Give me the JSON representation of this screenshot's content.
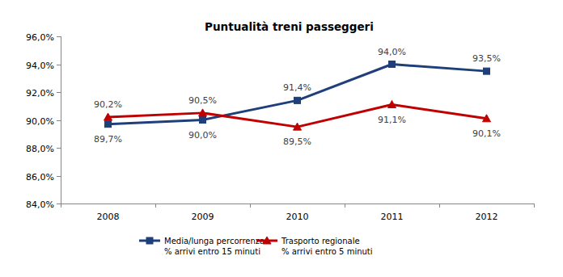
{
  "chart_data": {
    "type": "line",
    "title": "Puntualità treni passeggeri",
    "categories": [
      "2008",
      "2009",
      "2010",
      "2011",
      "2012"
    ],
    "series": [
      {
        "name": "Media/lunga percorrenza\n% arrivi entro 15 minuti",
        "color": "#1f3f7a",
        "marker": "square",
        "line_style": "solid",
        "values": [
          89.7,
          90.0,
          91.4,
          94.0,
          93.5
        ],
        "value_labels": [
          "89,7%",
          "90,0%",
          "91,4%",
          "94,0%",
          "93,5%"
        ]
      },
      {
        "name": "Trasporto regionale\n% arrivi entro 5 minuti",
        "color": "#c00000",
        "marker": "triangle",
        "line_style": "solid",
        "values": [
          90.2,
          90.5,
          89.5,
          91.1,
          90.1
        ],
        "value_labels": [
          "90,2%",
          "90,5%",
          "89,5%",
          "91,1%",
          "90,1%"
        ]
      }
    ],
    "ylim": [
      84,
      96
    ],
    "yticks": [
      {
        "value": 84,
        "label": "84,0%"
      },
      {
        "value": 86,
        "label": "86,0%"
      },
      {
        "value": 88,
        "label": "88,0%"
      },
      {
        "value": 90,
        "label": "90,0%"
      },
      {
        "value": 92,
        "label": "92,0%"
      },
      {
        "value": 94,
        "label": "94,0%"
      },
      {
        "value": 96,
        "label": "96,0%"
      }
    ],
    "grid": false,
    "data_labels": true,
    "legend": "bottom"
  }
}
